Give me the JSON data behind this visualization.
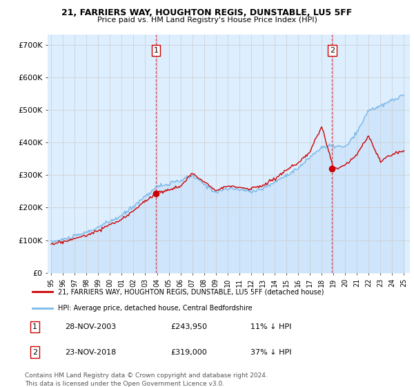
{
  "title1": "21, FARRIERS WAY, HOUGHTON REGIS, DUNSTABLE, LU5 5FF",
  "title2": "Price paid vs. HM Land Registry's House Price Index (HPI)",
  "ylabel_ticks": [
    "£0",
    "£100K",
    "£200K",
    "£300K",
    "£400K",
    "£500K",
    "£600K",
    "£700K"
  ],
  "ytick_vals": [
    0,
    100000,
    200000,
    300000,
    400000,
    500000,
    600000,
    700000
  ],
  "ylim": [
    0,
    730000
  ],
  "xlim_start": 1994.7,
  "xlim_end": 2025.5,
  "grid_color": "#cccccc",
  "background_color": "#ddeeff",
  "hpi_line_color": "#7ab8e8",
  "price_line_color": "#cc0000",
  "sale1_x": 2003.91,
  "sale1_y": 243950,
  "sale2_x": 2018.9,
  "sale2_y": 319000,
  "legend_line1": "21, FARRIERS WAY, HOUGHTON REGIS, DUNSTABLE, LU5 5FF (detached house)",
  "legend_line2": "HPI: Average price, detached house, Central Bedfordshire",
  "table_row1": [
    "1",
    "28-NOV-2003",
    "£243,950",
    "11% ↓ HPI"
  ],
  "table_row2": [
    "2",
    "23-NOV-2018",
    "£319,000",
    "37% ↓ HPI"
  ],
  "footnote": "Contains HM Land Registry data © Crown copyright and database right 2024.\nThis data is licensed under the Open Government Licence v3.0.",
  "xtick_years": [
    1995,
    1996,
    1997,
    1998,
    1999,
    2000,
    2001,
    2002,
    2003,
    2004,
    2005,
    2006,
    2007,
    2008,
    2009,
    2010,
    2011,
    2012,
    2013,
    2014,
    2015,
    2016,
    2017,
    2018,
    2019,
    2020,
    2021,
    2022,
    2023,
    2024,
    2025
  ]
}
